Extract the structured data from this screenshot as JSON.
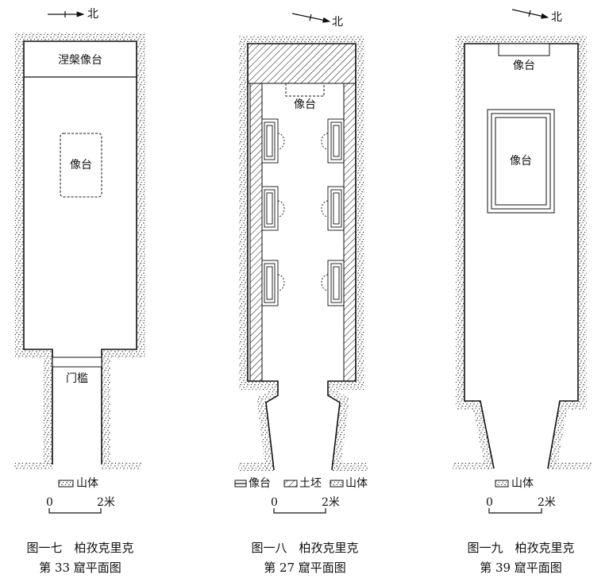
{
  "figures": [
    {
      "north": "北",
      "labels": [
        "涅槃像台",
        "像台",
        "门槛"
      ],
      "legend": [
        "山体"
      ],
      "scale": {
        "start": "0",
        "end": "2米"
      },
      "caption": {
        "line1": "图一七　柏孜克里克",
        "line2": "第 33 窟平面图"
      }
    },
    {
      "north": "北",
      "labels": [
        "像台"
      ],
      "legend": [
        "像台",
        "土坯",
        "山体"
      ],
      "scale": {
        "start": "0",
        "end": "2米"
      },
      "caption": {
        "line1": "图一八　柏孜克里克",
        "line2": "第 27 窟平面图"
      }
    },
    {
      "north": "北",
      "labels": [
        "像台",
        "像台"
      ],
      "legend": [
        "山体"
      ],
      "scale": {
        "start": "0",
        "end": "2米"
      },
      "caption": {
        "line1": "图一九　柏孜克里克",
        "line2": "第 39 窟平面图"
      }
    }
  ]
}
